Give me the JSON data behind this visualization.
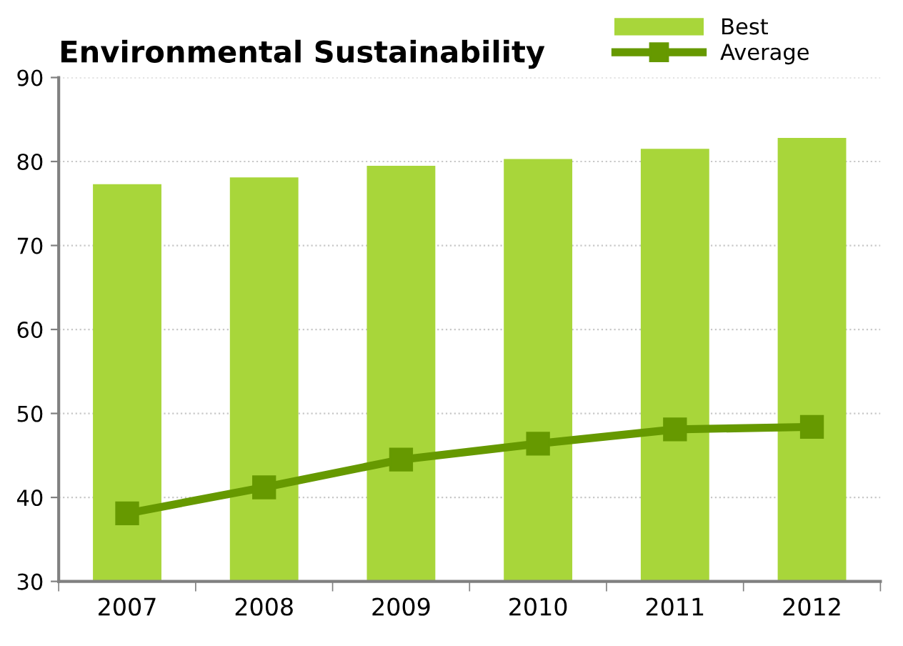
{
  "chart_data": {
    "type": "bar",
    "title": "Environmental Sustainability",
    "categories": [
      "2007",
      "2008",
      "2009",
      "2010",
      "2011",
      "2012"
    ],
    "series": [
      {
        "name": "Best",
        "color": "#a8d63a",
        "values": [
          77.3,
          78.1,
          79.5,
          80.3,
          81.5,
          82.8
        ]
      },
      {
        "name": "Average",
        "type": "line",
        "color": "#669900",
        "values": [
          38.1,
          41.2,
          44.5,
          46.4,
          48.1,
          48.4
        ]
      }
    ],
    "ylim": [
      30,
      90
    ],
    "yticks": [
      30,
      40,
      50,
      60,
      70,
      80,
      90
    ],
    "grid": "y",
    "legend": "top right",
    "marker": "square",
    "line_style": "solid"
  }
}
